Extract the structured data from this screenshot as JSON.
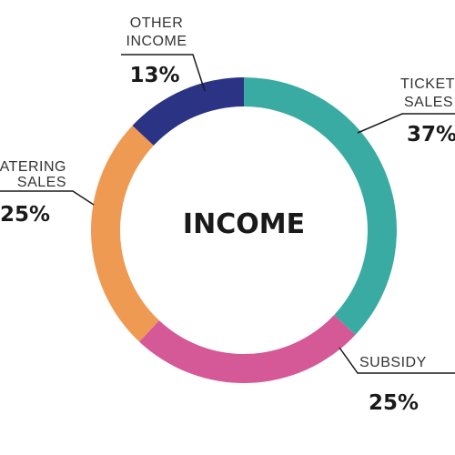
{
  "chart_data": {
    "type": "pie",
    "donut": true,
    "center_label": "INCOME",
    "categories": [
      "TICKET SALES",
      "SUBSIDY",
      "CATERING SALES",
      "OTHER INCOME"
    ],
    "values": [
      37,
      25,
      25,
      13
    ],
    "value_labels": [
      "37%",
      "25%",
      "25%",
      "13%"
    ],
    "colors": [
      "#3aaba3",
      "#d55997",
      "#ee9a52",
      "#2b3384"
    ],
    "label_lines": {
      "ticket": [
        "TICKET",
        "SALES"
      ],
      "subsidy": [
        "SUBSIDY"
      ],
      "catering": [
        "CATERING",
        "SALES"
      ],
      "other": [
        "OTHER",
        "INCOME"
      ]
    }
  }
}
